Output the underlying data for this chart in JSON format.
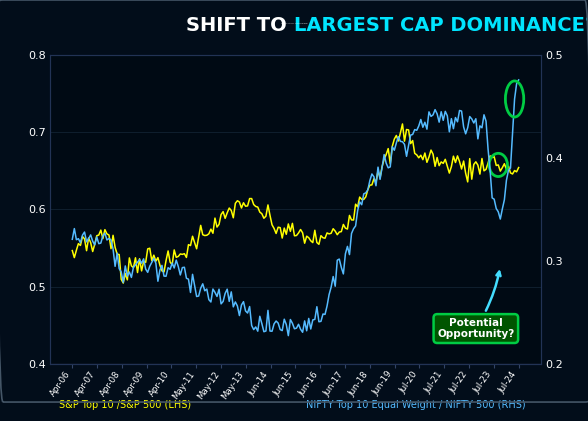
{
  "title_white": "SHIFT TO ",
  "title_cyan": "LARGEST CAP DOMINANCE?",
  "bg_color": "#020d1a",
  "plot_bg_color": "#020d1a",
  "lhs_color": "#ffff00",
  "rhs_color": "#55bbff",
  "lhs_label": "S&P Top 10 /S&P 500 (LHS)",
  "rhs_label": "NIFTY Top 10 Equal Weight / NIFTY 500 (RHS)",
  "lhs_ylim": [
    0.4,
    0.8
  ],
  "rhs_ylim": [
    0.2,
    0.5
  ],
  "lhs_yticks": [
    0.4,
    0.5,
    0.6,
    0.7,
    0.8
  ],
  "rhs_yticks": [
    0.2,
    0.3,
    0.4,
    0.5
  ],
  "annotation_text": "Potential\nOpportunity?",
  "circle_color": "#00cc44",
  "arrow_color": "#44ddff",
  "x_labels": [
    "Apr-06",
    "Apr-07",
    "Apr-08",
    "Apr-09",
    "Apr-10",
    "May-11",
    "May-12",
    "May-13",
    "Jun-14",
    "Jun-15",
    "Jun-16",
    "Jun-17",
    "Jun-18",
    "Jun-19",
    "Jul-20",
    "Jul-21",
    "Jul-22",
    "Jul-23",
    "Jul-24"
  ],
  "n_points": 220
}
